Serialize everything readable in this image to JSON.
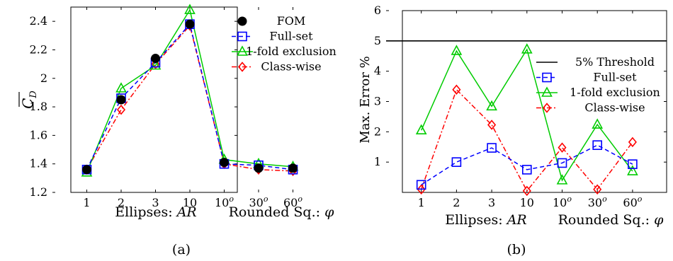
{
  "chart_data": [
    {
      "type": "line",
      "caption": "(a)",
      "ylabel_base": "C",
      "ylabel_sub": "D",
      "xlabel_left_text": "Ellipses: ",
      "xlabel_left_sym": "AR",
      "xlabel_right_text": "Rounded Sq.: ",
      "xlabel_right_sym": "φ",
      "x_ticks": [
        {
          "base": "1",
          "sup": ""
        },
        {
          "base": "2",
          "sup": ""
        },
        {
          "base": "3",
          "sup": ""
        },
        {
          "base": "10",
          "sup": ""
        },
        {
          "base": "10",
          "sup": "o"
        },
        {
          "base": "30",
          "sup": "o"
        },
        {
          "base": "60",
          "sup": "o"
        }
      ],
      "y_ticks": [
        "1.2",
        "1.4",
        "1.6",
        "1.8",
        "2",
        "2.2",
        "2.4"
      ],
      "ylim": [
        1.2,
        2.5
      ],
      "legend_position": "top-right",
      "series": [
        {
          "name": "FOM",
          "style": "markers",
          "color": "#000000",
          "marker": "filled-circle",
          "values": [
            1.36,
            1.85,
            2.14,
            2.38,
            1.41,
            1.37,
            1.37
          ]
        },
        {
          "name": "Full-set",
          "style": "dashed",
          "color": "#0000ff",
          "marker": "square",
          "values": [
            1.36,
            1.86,
            2.11,
            2.38,
            1.4,
            1.39,
            1.36
          ]
        },
        {
          "name": "1-fold exclusion",
          "style": "solid",
          "color": "#00cc00",
          "marker": "triangle",
          "values": [
            1.34,
            1.93,
            2.09,
            2.48,
            1.43,
            1.4,
            1.38
          ]
        },
        {
          "name": "Class-wise",
          "style": "dashdot",
          "color": "#ff0000",
          "marker": "diamond",
          "values": [
            1.36,
            1.78,
            2.1,
            2.37,
            1.4,
            1.36,
            1.35
          ]
        }
      ]
    },
    {
      "type": "line",
      "caption": "(b)",
      "ylabel": "Max. Error %",
      "xlabel_left_text": "Ellipses: ",
      "xlabel_left_sym": "AR",
      "xlabel_right_text": "Rounded Sq.: ",
      "xlabel_right_sym": "φ",
      "x_ticks": [
        {
          "base": "1",
          "sup": ""
        },
        {
          "base": "2",
          "sup": ""
        },
        {
          "base": "3",
          "sup": ""
        },
        {
          "base": "10",
          "sup": ""
        },
        {
          "base": "10",
          "sup": "o"
        },
        {
          "base": "30",
          "sup": "o"
        },
        {
          "base": "60",
          "sup": "o"
        }
      ],
      "y_ticks": [
        "1",
        "2",
        "3",
        "4",
        "5",
        "6"
      ],
      "ylim": [
        0,
        6
      ],
      "legend_position": "right",
      "threshold": {
        "name": "5% Threshold",
        "value": 5,
        "color": "#000000"
      },
      "series": [
        {
          "name": "Full-set",
          "style": "dashed",
          "color": "#0000ff",
          "marker": "square",
          "values": [
            0.25,
            1.0,
            1.47,
            0.75,
            0.97,
            1.56,
            0.93
          ]
        },
        {
          "name": "1-fold exclusion",
          "style": "solid",
          "color": "#00cc00",
          "marker": "triangle",
          "values": [
            2.05,
            4.67,
            2.84,
            4.72,
            0.4,
            2.24,
            0.7
          ]
        },
        {
          "name": "Class-wise",
          "style": "dashdot",
          "color": "#ff0000",
          "marker": "diamond",
          "values": [
            0.1,
            3.39,
            2.23,
            0.05,
            1.48,
            0.1,
            1.66
          ]
        }
      ]
    }
  ]
}
